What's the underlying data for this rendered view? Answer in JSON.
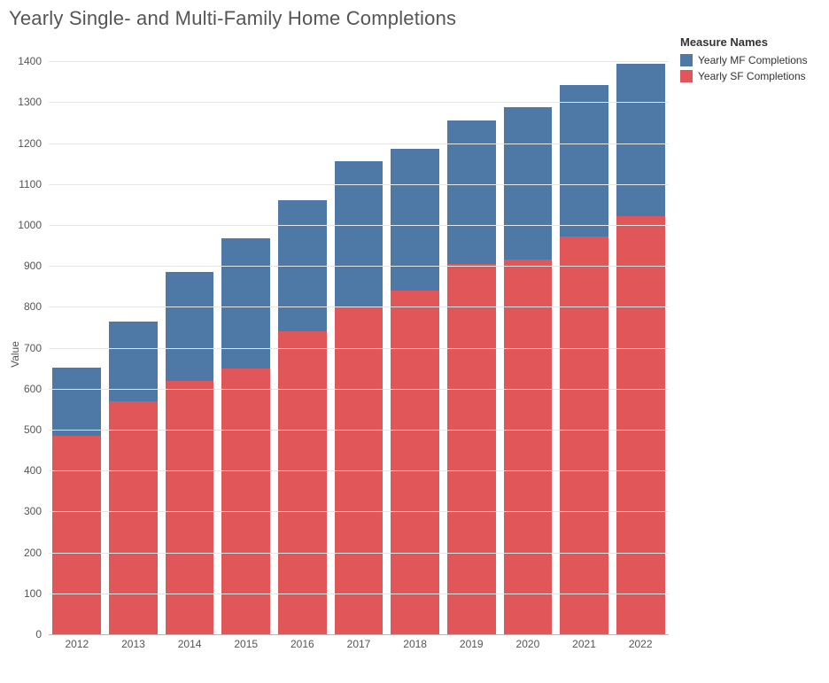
{
  "title": "Yearly Single- and Multi-Family Home Completions",
  "legend": {
    "title": "Measure Names",
    "items": [
      {
        "label": "Yearly MF Completions",
        "color": "#4e79a7"
      },
      {
        "label": "Yearly SF Completions",
        "color": "#e15759"
      }
    ]
  },
  "chart": {
    "type": "stacked-bar",
    "yaxis_label": "Value",
    "ylim": [
      0,
      1450
    ],
    "yticks": [
      0,
      100,
      200,
      300,
      400,
      500,
      600,
      700,
      800,
      900,
      1000,
      1100,
      1200,
      1300,
      1400
    ],
    "categories": [
      "2012",
      "2013",
      "2014",
      "2015",
      "2016",
      "2017",
      "2018",
      "2019",
      "2020",
      "2021",
      "2022"
    ],
    "series": [
      {
        "name": "Yearly SF Completions",
        "color": "#e15759",
        "values": [
          485,
          570,
          620,
          650,
          740,
          798,
          840,
          905,
          915,
          972,
          1022
        ]
      },
      {
        "name": "Yearly MF Completions",
        "color": "#4e79a7",
        "values": [
          166,
          195,
          266,
          318,
          320,
          358,
          347,
          350,
          373,
          370,
          372
        ]
      }
    ],
    "bar_width_ratio": 0.86,
    "background_color": "#ffffff",
    "grid_color": "#e6e6e6",
    "baseline_color": "#b8b8b8",
    "tick_fontsize": 12,
    "tick_color": "#555555",
    "title_fontsize": 22,
    "title_color": "#555555"
  }
}
